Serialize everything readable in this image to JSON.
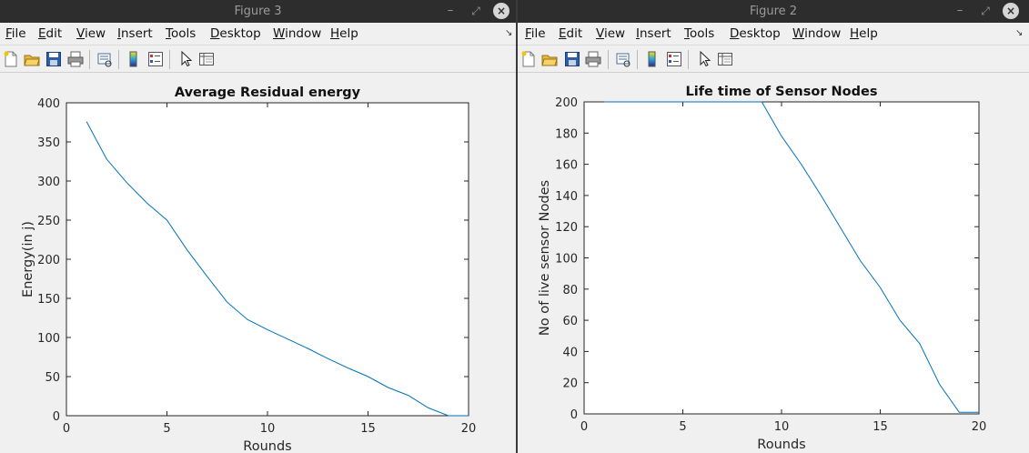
{
  "windows": [
    {
      "id": "fig3",
      "title": "Figure 3",
      "menu": [
        "File",
        "Edit",
        "View",
        "Insert",
        "Tools",
        "Desktop",
        "Window",
        "Help"
      ],
      "chart_data": {
        "type": "line",
        "title": "Average Residual energy",
        "xlabel": "Rounds",
        "ylabel": "Energy(in j)",
        "xlim": [
          0,
          20
        ],
        "ylim": [
          0,
          400
        ],
        "xticks": [
          0,
          5,
          10,
          15,
          20
        ],
        "yticks": [
          0,
          50,
          100,
          150,
          200,
          250,
          300,
          350,
          400
        ],
        "grid": false,
        "color": "#0072BD",
        "x": [
          1,
          2,
          3,
          4,
          5,
          6,
          7,
          8,
          9,
          10,
          11,
          12,
          13,
          14,
          15,
          16,
          17,
          18,
          19,
          20
        ],
        "y": [
          376,
          328,
          298,
          272,
          250,
          212,
          178,
          145,
          123,
          110,
          98,
          86,
          73,
          61,
          50,
          36,
          26,
          10,
          0,
          0
        ]
      }
    },
    {
      "id": "fig2",
      "title": "Figure 2",
      "menu": [
        "File",
        "Edit",
        "View",
        "Insert",
        "Tools",
        "Desktop",
        "Window",
        "Help"
      ],
      "chart_data": {
        "type": "line",
        "title": "Life time of Sensor Nodes",
        "xlabel": "Rounds",
        "ylabel": "No of live sensor Nodes",
        "xlim": [
          0,
          20
        ],
        "ylim": [
          0,
          200
        ],
        "xticks": [
          0,
          5,
          10,
          15,
          20
        ],
        "yticks": [
          0,
          20,
          40,
          60,
          80,
          100,
          120,
          140,
          160,
          180,
          200
        ],
        "grid": false,
        "color": "#0072BD",
        "x": [
          1,
          2,
          3,
          4,
          5,
          6,
          7,
          8,
          9,
          10,
          11,
          12,
          13,
          14,
          15,
          16,
          17,
          18,
          19,
          20
        ],
        "y": [
          200,
          200,
          200,
          200,
          200,
          200,
          200,
          200,
          200,
          178,
          160,
          140,
          119,
          98,
          81,
          60,
          45,
          19,
          1,
          1
        ]
      }
    }
  ]
}
